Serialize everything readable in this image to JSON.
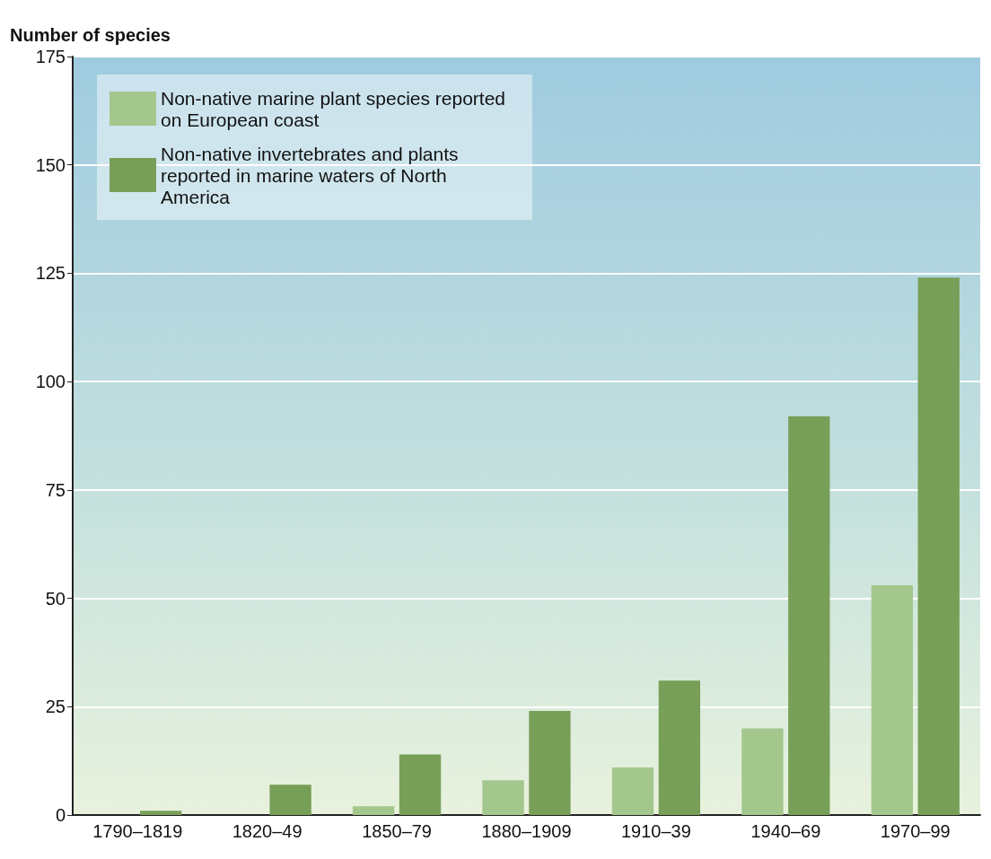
{
  "chart_data": {
    "type": "bar",
    "ylabel": "Number of species",
    "categories": [
      "1790–1819",
      "1820–49",
      "1850–79",
      "1880–1909",
      "1910–39",
      "1940–69",
      "1970–99"
    ],
    "series": [
      {
        "name": "Non-native marine plant species reported on European coast",
        "color": "#a3c78c",
        "values": [
          null,
          null,
          2,
          8,
          11,
          20,
          53
        ]
      },
      {
        "name": "Non-native invertebrates and plants reported in marine waters of North America",
        "color": "#789f58",
        "values": [
          1,
          7,
          14,
          24,
          31,
          92,
          124
        ]
      }
    ],
    "ylim": [
      0,
      175
    ],
    "yticks": [
      0,
      25,
      50,
      75,
      100,
      125,
      150,
      175
    ],
    "grid": "y",
    "legend": "top left"
  }
}
